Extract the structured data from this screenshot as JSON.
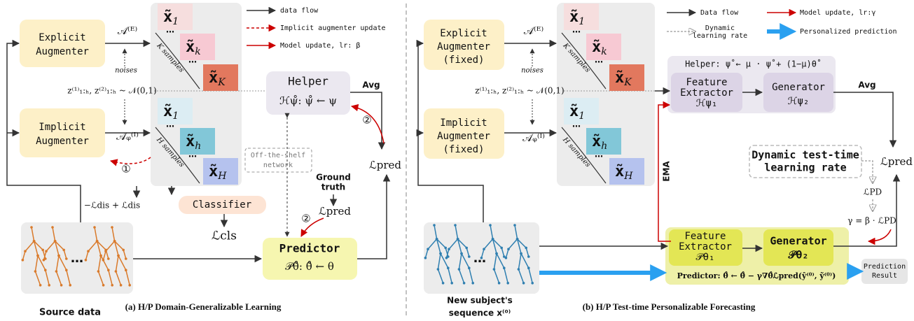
{
  "left": {
    "legend": {
      "data_flow": "data flow",
      "implicit_update": "Implicit augmenter update",
      "model_update": "Model update, lr: β"
    },
    "explicit_augmenter": [
      "Explicit",
      "Augmenter"
    ],
    "explicit_output": "𝒜⁽ᴱ⁾",
    "noises": "noises",
    "noise_eq": "z⁽¹⁾₁:ₕ, z⁽²⁾₁:ₕ ~ 𝒩(0,1)",
    "implicit_augmenter": [
      "Implicit",
      "Augmenter"
    ],
    "implicit_output": "𝒜ᵩ⁽ᴵ⁾",
    "step_1": "①",
    "step_2": "②",
    "ellipsis": "…",
    "explicit_samples": [
      {
        "sym": "x̃",
        "sub": "1"
      },
      {
        "sym": "x̃",
        "sub": "k"
      },
      {
        "sym": "x̃",
        "sub": "K"
      }
    ],
    "explicit_count": "K samples",
    "implicit_samples": [
      {
        "sym": "x̃",
        "sub": "1"
      },
      {
        "sym": "x̃",
        "sub": "h"
      },
      {
        "sym": "x̃",
        "sub": "H"
      }
    ],
    "implicit_count": "H samples",
    "helper": {
      "title": "Helper",
      "formula": "ℋψ̊: ψ̊ ← ψ"
    },
    "avg": "Avg",
    "off_the_shelf": [
      "Off-the-shelf",
      "network"
    ],
    "ground_truth": [
      "Ground",
      "truth"
    ],
    "loss_pred": "ℒpred",
    "loss_dis": "−ℒdis + ℒdis",
    "classifier": "Classifier",
    "loss_cls": "ℒcls",
    "predictor": {
      "title": "Predictor",
      "formula": "𝒫θ̊:  θ̊ ← θ"
    },
    "source_data": "Source data",
    "caption": "(a) H/P Domain-Generalizable Learning"
  },
  "right": {
    "legend": {
      "data_flow": "Data flow",
      "model_update": "Model update, lr:γ",
      "dynamic_rate": [
        "Dynamic",
        "learning rate"
      ],
      "personalized": "Personalized prediction"
    },
    "explicit_augmenter": [
      "Explicit",
      "Augmenter",
      "(fixed)"
    ],
    "explicit_output": "𝒜⁽ᴱ⁾",
    "noises": "noises",
    "noise_eq": "z⁽¹⁾₁:ₕ, z⁽²⁾₁:ₕ ~ 𝒩(0,1)",
    "implicit_augmenter": [
      "Implicit",
      "Augmenter",
      "(fixed)"
    ],
    "implicit_output": "𝒜ᵩ⁽ᴵ⁾",
    "ellipsis": "…",
    "explicit_samples": [
      {
        "sym": "x̃",
        "sub": "1"
      },
      {
        "sym": "x̃",
        "sub": "k"
      },
      {
        "sym": "x̃",
        "sub": "K"
      }
    ],
    "explicit_count": "K samples",
    "implicit_samples": [
      {
        "sym": "x̃",
        "sub": "1"
      },
      {
        "sym": "x̃",
        "sub": "h"
      },
      {
        "sym": "x̃",
        "sub": "H"
      }
    ],
    "implicit_count": "H samples",
    "helper": {
      "title": "Helper: ψ̊ ← μ · ψ̊ + (1−μ)θ̊",
      "feature": [
        "Feature",
        "Extractor",
        "ℋψ₁"
      ],
      "generator": [
        "Generator",
        "ℋψ₂"
      ]
    },
    "avg": "Avg",
    "dynamic_box": [
      "Dynamic test-time",
      "learning rate"
    ],
    "loss_pred": "ℒpred",
    "loss_pd": "ℒPD",
    "gamma_eq": "γ = β · ℒPD",
    "ema": "EMA",
    "predictor": {
      "feature": [
        "Feature",
        "Extractor",
        "𝒫θ₁"
      ],
      "generator": [
        "Generator",
        "𝒫θ₂"
      ],
      "formula": "Predictor: θ̊ ← θ̊ − γ∇θ̊ℒpred(ŷ⁽⁰⁾, ỹ⁽⁰⁾)"
    },
    "prediction_result": [
      "Prediction",
      "Result"
    ],
    "new_subject": [
      "New subject's",
      "sequence x⁽⁰⁾"
    ],
    "caption": "(b) H/P Test-time Personalizable Forecasting"
  }
}
